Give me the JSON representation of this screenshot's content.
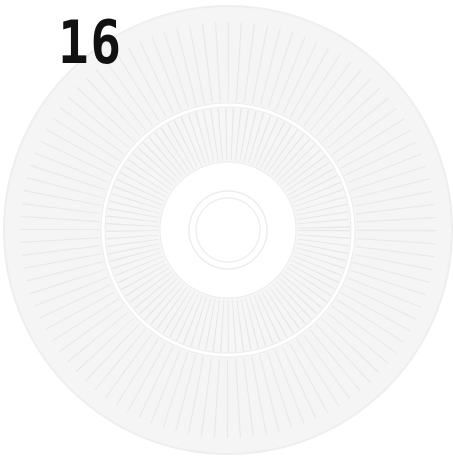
{
  "score": "16"
}
